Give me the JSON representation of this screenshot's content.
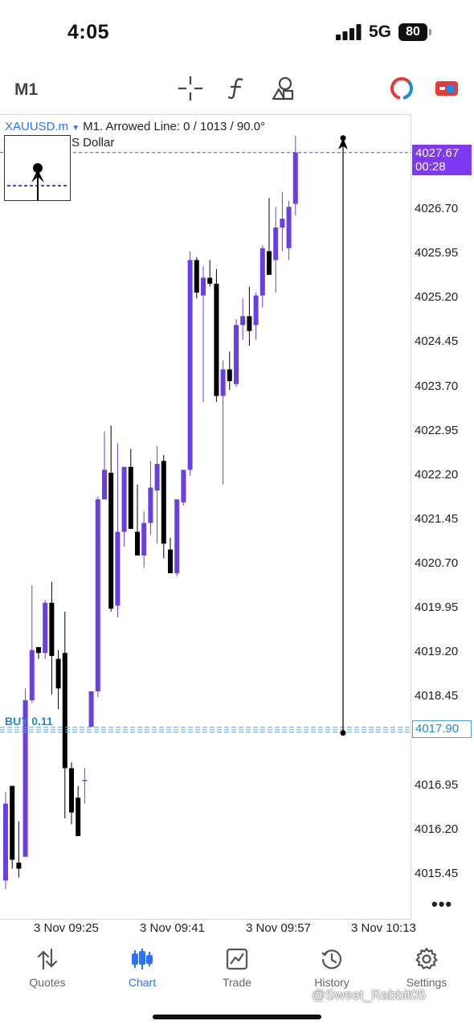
{
  "status_bar": {
    "time": "4:05",
    "network": "5G",
    "battery": "80"
  },
  "toolbar": {
    "timeframe": "M1",
    "icons": [
      "crosshair-icon",
      "indicators-icon",
      "objects-icon",
      "color-scheme-icon",
      "toggle-icon"
    ]
  },
  "chart": {
    "symbol": "XAUUSD.m",
    "info": "M1. Arrowed Line: 0 / 1013 / 90.0°",
    "subtitle": "S Dollar",
    "current_price": "4027.67",
    "countdown": "00:28",
    "buy_label": "BUY 0.11",
    "buy_price": "4017.90",
    "colors": {
      "bull": "#6a3fe0",
      "bear": "#000000",
      "bid_line": "#6a3fe0",
      "buy_line": "#56a7e6",
      "accent": "#2b72ff"
    }
  },
  "price_axis": [
    "4026.70",
    "4025.95",
    "4025.20",
    "4024.45",
    "4023.70",
    "4022.95",
    "4022.20",
    "4021.45",
    "4020.70",
    "4019.95",
    "4019.20",
    "4018.45",
    "4016.95",
    "4016.20",
    "4015.45"
  ],
  "time_axis": [
    "3 Nov 09:25",
    "3 Nov 09:41",
    "3 Nov 09:57",
    "3 Nov 10:13"
  ],
  "tabs": [
    {
      "label": "Quotes",
      "icon": "quotes-icon"
    },
    {
      "label": "Chart",
      "icon": "chart-icon",
      "active": true
    },
    {
      "label": "Trade",
      "icon": "trade-icon"
    },
    {
      "label": "History",
      "icon": "history-icon"
    },
    {
      "label": "Settings",
      "icon": "settings-icon"
    }
  ],
  "watermark": "@Sweet_Rabbit05",
  "chart_data": {
    "type": "candlestick",
    "candles": [
      {
        "o": 4015.35,
        "h": 4016.85,
        "l": 4015.2,
        "c": 4016.65
      },
      {
        "o": 4016.95,
        "h": 4016.95,
        "l": 4015.55,
        "c": 4015.7
      },
      {
        "o": 4015.65,
        "h": 4016.35,
        "l": 4015.4,
        "c": 4015.55
      },
      {
        "o": 4015.75,
        "h": 4018.6,
        "l": 4015.75,
        "c": 4018.4
      },
      {
        "o": 4018.4,
        "h": 4020.35,
        "l": 4018.35,
        "c": 4019.25
      },
      {
        "o": 4019.3,
        "h": 4019.3,
        "l": 4019.1,
        "c": 4019.2
      },
      {
        "o": 4019.2,
        "h": 4020.1,
        "l": 4019.1,
        "c": 4020.05
      },
      {
        "o": 4020.05,
        "h": 4020.4,
        "l": 4018.5,
        "c": 4019.15
      },
      {
        "o": 4019.1,
        "h": 4019.25,
        "l": 4018.25,
        "c": 4018.6
      },
      {
        "o": 4019.2,
        "h": 4019.9,
        "l": 4016.4,
        "c": 4017.25
      },
      {
        "o": 4017.25,
        "h": 4017.35,
        "l": 4016.3,
        "c": 4016.5
      },
      {
        "o": 4016.75,
        "h": 4016.95,
        "l": 4016.15,
        "c": 4016.1
      },
      {
        "o": 4017.05,
        "h": 4017.25,
        "l": 4016.65,
        "c": 4017.05
      },
      {
        "o": 4017.95,
        "h": 4018.55,
        "l": 4017.95,
        "c": 4018.55
      },
      {
        "o": 4018.55,
        "h": 4021.85,
        "l": 4018.45,
        "c": 4021.8
      },
      {
        "o": 4021.8,
        "h": 4022.95,
        "l": 4021.8,
        "c": 4022.3
      },
      {
        "o": 4022.25,
        "h": 4023.05,
        "l": 4019.9,
        "c": 4019.95
      },
      {
        "o": 4020.0,
        "h": 4022.75,
        "l": 4019.8,
        "c": 4021.25
      },
      {
        "o": 4021.25,
        "h": 4022.25,
        "l": 4021.0,
        "c": 4022.35
      },
      {
        "o": 4022.35,
        "h": 4022.65,
        "l": 4021.4,
        "c": 4021.3
      },
      {
        "o": 4021.25,
        "h": 4022.05,
        "l": 4020.9,
        "c": 4020.85
      },
      {
        "o": 4020.85,
        "h": 4021.6,
        "l": 4020.65,
        "c": 4021.4
      },
      {
        "o": 4021.4,
        "h": 4022.45,
        "l": 4021.2,
        "c": 4022.0
      },
      {
        "o": 4021.95,
        "h": 4022.7,
        "l": 4021.05,
        "c": 4022.4
      },
      {
        "o": 4022.45,
        "h": 4022.55,
        "l": 4020.8,
        "c": 4021.05
      },
      {
        "o": 4020.95,
        "h": 4021.15,
        "l": 4020.55,
        "c": 4020.55
      },
      {
        "o": 4020.55,
        "h": 4021.8,
        "l": 4020.5,
        "c": 4021.8
      },
      {
        "o": 4021.75,
        "h": 4022.3,
        "l": 4021.7,
        "c": 4022.3
      },
      {
        "o": 4022.3,
        "h": 4026.0,
        "l": 4022.2,
        "c": 4025.85
      },
      {
        "o": 4025.85,
        "h": 4025.9,
        "l": 4025.2,
        "c": 4025.3
      },
      {
        "o": 4025.25,
        "h": 4025.75,
        "l": 4023.45,
        "c": 4025.55
      },
      {
        "o": 4025.55,
        "h": 4025.85,
        "l": 4025.4,
        "c": 4025.45
      },
      {
        "o": 4025.45,
        "h": 4025.7,
        "l": 4023.45,
        "c": 4023.55
      },
      {
        "o": 4023.55,
        "h": 4024.15,
        "l": 4022.05,
        "c": 4024.0
      },
      {
        "o": 4024.0,
        "h": 4024.3,
        "l": 4023.65,
        "c": 4023.8
      },
      {
        "o": 4023.75,
        "h": 4024.85,
        "l": 4023.7,
        "c": 4024.75
      },
      {
        "o": 4024.75,
        "h": 4025.2,
        "l": 4024.5,
        "c": 4024.9
      },
      {
        "o": 4024.9,
        "h": 4025.4,
        "l": 4024.4,
        "c": 4024.65
      },
      {
        "o": 4024.75,
        "h": 4025.3,
        "l": 4024.5,
        "c": 4025.25
      },
      {
        "o": 4025.25,
        "h": 4026.1,
        "l": 4025.05,
        "c": 4026.05
      },
      {
        "o": 4026.0,
        "h": 4026.9,
        "l": 4025.6,
        "c": 4025.6
      },
      {
        "o": 4025.85,
        "h": 4026.75,
        "l": 4025.3,
        "c": 4026.4
      },
      {
        "o": 4026.4,
        "h": 4027.0,
        "l": 4026.0,
        "c": 4026.55
      },
      {
        "o": 4026.05,
        "h": 4026.85,
        "l": 4025.85,
        "c": 4026.75
      },
      {
        "o": 4026.8,
        "h": 4027.95,
        "l": 4026.6,
        "c": 4027.67
      }
    ],
    "bid_price": 4027.67,
    "buy_price": 4017.9,
    "arrowed_line": {
      "top_price": 4027.67,
      "bottom_price": 4017.9,
      "angle": "90.0°"
    }
  }
}
